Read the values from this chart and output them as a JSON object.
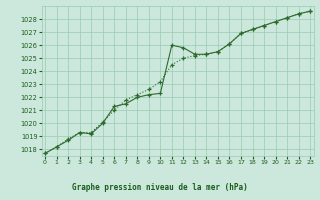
{
  "line1_x": [
    0,
    1,
    2,
    3,
    4,
    5,
    6,
    7,
    8,
    9,
    10,
    11,
    12,
    13,
    14,
    15,
    16,
    17,
    18,
    19,
    20,
    21,
    22,
    23
  ],
  "line1_y": [
    1017.7,
    1018.2,
    1018.7,
    1019.3,
    1019.2,
    1020.0,
    1021.3,
    1021.5,
    1022.0,
    1022.2,
    1022.3,
    1026.0,
    1025.8,
    1025.3,
    1025.3,
    1025.5,
    1026.1,
    1026.9,
    1027.2,
    1027.5,
    1027.8,
    1028.1,
    1028.4,
    1028.6
  ],
  "line2_x": [
    0,
    1,
    2,
    3,
    4,
    5,
    6,
    7,
    8,
    9,
    10,
    11,
    12,
    13,
    14,
    15,
    16,
    17,
    18,
    19,
    20,
    21,
    22,
    23
  ],
  "line2_y": [
    1017.7,
    1018.2,
    1018.8,
    1019.3,
    1019.3,
    1020.1,
    1021.0,
    1021.8,
    1022.2,
    1022.6,
    1023.2,
    1024.5,
    1025.0,
    1025.2,
    1025.3,
    1025.5,
    1026.1,
    1026.9,
    1027.2,
    1027.5,
    1027.8,
    1028.1,
    1028.4,
    1028.6
  ],
  "line_color": "#2d6a2d",
  "bg_color": "#cce8dc",
  "grid_color": "#99ccb3",
  "axis_color": "#1a5c1a",
  "xlabel": "Graphe pression niveau de la mer (hPa)",
  "xlabel_color": "#1a5c1a",
  "ylim": [
    1017.5,
    1029.0
  ],
  "xlim": [
    -0.3,
    23.3
  ],
  "yticks": [
    1018,
    1019,
    1020,
    1021,
    1022,
    1023,
    1024,
    1025,
    1026,
    1027,
    1028
  ],
  "xticks": [
    0,
    1,
    2,
    3,
    4,
    5,
    6,
    7,
    8,
    9,
    10,
    11,
    12,
    13,
    14,
    15,
    16,
    17,
    18,
    19,
    20,
    21,
    22,
    23
  ]
}
